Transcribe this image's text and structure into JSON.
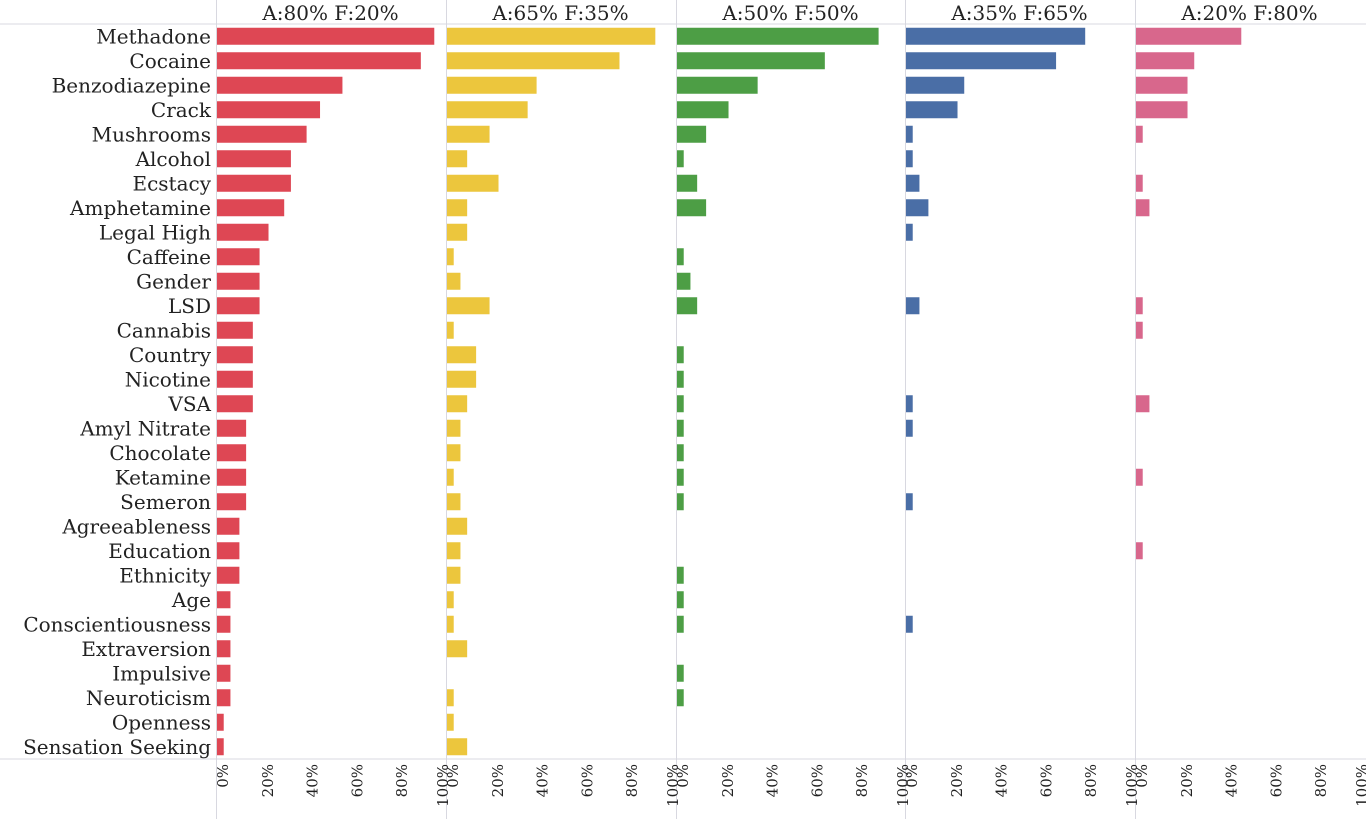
{
  "chart_data": {
    "type": "bar",
    "orientation": "horizontal",
    "categories": [
      "Methadone",
      "Cocaine",
      "Benzodiazepine",
      "Crack",
      "Mushrooms",
      "Alcohol",
      "Ecstacy",
      "Amphetamine",
      "Legal High",
      "Caffeine",
      "Gender",
      "LSD",
      "Cannabis",
      "Country",
      "Nicotine",
      "VSA",
      "Amyl Nitrate",
      "Chocolate",
      "Ketamine",
      "Semeron",
      "Agreeableness",
      "Education",
      "Ethnicity",
      "Age",
      "Conscientiousness",
      "Extraversion",
      "Impulsive",
      "Neuroticism",
      "Openness",
      "Sensation Seeking"
    ],
    "series": [
      {
        "name": "A:80% F:20%",
        "color": "#de4754",
        "values": [
          97,
          91,
          56,
          46,
          40,
          33,
          33,
          30,
          23,
          19,
          19,
          19,
          16,
          16,
          16,
          16,
          13,
          13,
          13,
          13,
          10,
          10,
          10,
          6,
          6,
          6,
          6,
          6,
          3,
          3
        ]
      },
      {
        "name": "A:65% F:35%",
        "color": "#ecc63d",
        "values": [
          93,
          77,
          40,
          36,
          19,
          9,
          23,
          9,
          9,
          3,
          6,
          19,
          3,
          13,
          13,
          9,
          6,
          6,
          3,
          6,
          9,
          6,
          6,
          3,
          3,
          9,
          0,
          3,
          3,
          9
        ]
      },
      {
        "name": "A:50% F:50%",
        "color": "#4d9e45",
        "values": [
          90,
          66,
          36,
          23,
          13,
          3,
          9,
          13,
          0,
          3,
          6,
          9,
          0,
          3,
          3,
          3,
          3,
          3,
          3,
          3,
          0,
          0,
          3,
          3,
          3,
          0,
          3,
          3,
          0,
          0
        ]
      },
      {
        "name": "A:35% F:65%",
        "color": "#4a6ea6",
        "values": [
          80,
          67,
          26,
          23,
          3,
          3,
          6,
          10,
          3,
          0,
          0,
          6,
          0,
          0,
          0,
          3,
          3,
          0,
          0,
          3,
          0,
          0,
          0,
          0,
          3,
          0,
          0,
          0,
          0,
          0
        ]
      },
      {
        "name": "A:20% F:80%",
        "color": "#d8678c",
        "values": [
          47,
          26,
          23,
          23,
          3,
          0,
          3,
          6,
          0,
          0,
          0,
          3,
          3,
          0,
          0,
          6,
          0,
          0,
          3,
          0,
          0,
          3,
          0,
          0,
          0,
          0,
          0,
          0,
          0,
          0
        ]
      }
    ],
    "x_ticks": [
      "0%",
      "20%",
      "40%",
      "60%",
      "80%",
      "100%"
    ],
    "xlim": [
      0,
      100
    ],
    "grid": false,
    "title": "",
    "xlabel": "",
    "ylabel": ""
  }
}
